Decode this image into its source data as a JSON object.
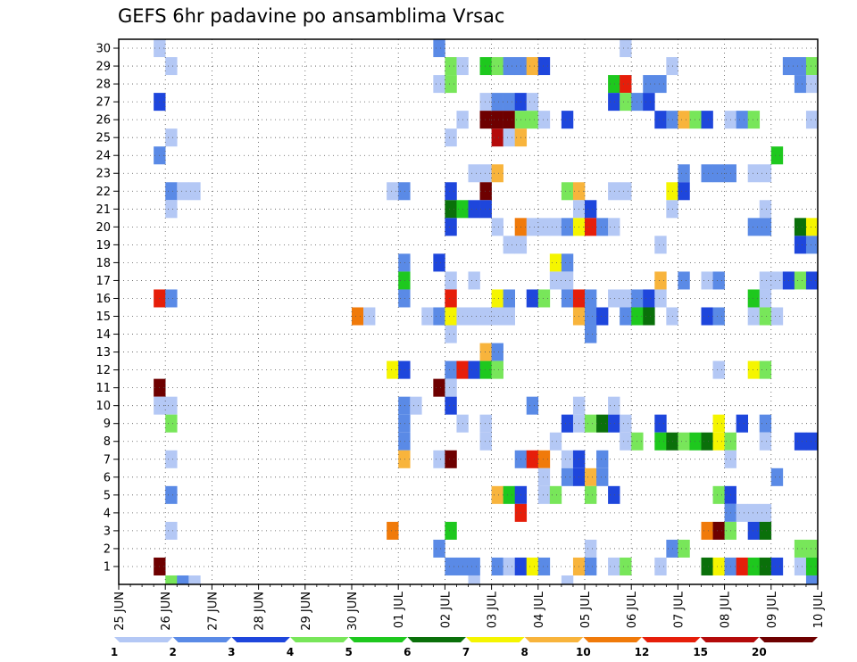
{
  "chart_data": {
    "type": "heatmap",
    "title": "GEFS 6hr padavine po ansamblima Vrsac",
    "xlabel": "",
    "ylabel": "",
    "n_timesteps": 60,
    "x_ticks": [
      {
        "t": 0,
        "label": "25 JUN"
      },
      {
        "t": 4,
        "label": "26 JUN"
      },
      {
        "t": 8,
        "label": "27 JUN"
      },
      {
        "t": 12,
        "label": "28 JUN"
      },
      {
        "t": 16,
        "label": "29 JUN"
      },
      {
        "t": 20,
        "label": "30 JUN"
      },
      {
        "t": 24,
        "label": "01 JUL"
      },
      {
        "t": 28,
        "label": "02 JUL"
      },
      {
        "t": 32,
        "label": "03 JUL"
      },
      {
        "t": 36,
        "label": "04 JUL"
      },
      {
        "t": 40,
        "label": "05 JUL"
      },
      {
        "t": 44,
        "label": "06 JUL"
      },
      {
        "t": 48,
        "label": "07 JUL"
      },
      {
        "t": 52,
        "label": "08 JUL"
      },
      {
        "t": 56,
        "label": "09 JUL"
      },
      {
        "t": 60,
        "label": "10 JUL"
      }
    ],
    "y_ticks": [
      1,
      2,
      3,
      4,
      5,
      6,
      7,
      8,
      9,
      10,
      11,
      12,
      13,
      14,
      15,
      16,
      17,
      18,
      19,
      20,
      21,
      22,
      23,
      24,
      25,
      26,
      27,
      28,
      29,
      30
    ],
    "ylim": [
      0,
      30
    ],
    "grid": true,
    "legend": {
      "placement": "bottom",
      "labels": [
        "1",
        "2",
        "3",
        "4",
        "5",
        "6",
        "7",
        "8",
        "10",
        "12",
        "15",
        "20"
      ],
      "colors": [
        "#b4c8f5",
        "#5a8ae6",
        "#1e46dc",
        "#78e65a",
        "#1ec81e",
        "#0a700a",
        "#f5f500",
        "#f8b43c",
        "#f07a0a",
        "#e61e0a",
        "#b40a0a",
        "#6e0000"
      ]
    },
    "cells": [
      [
        3,
        30,
        0
      ],
      [
        27,
        30,
        1
      ],
      [
        43,
        30,
        0
      ],
      [
        4,
        29,
        0
      ],
      [
        28,
        29,
        3
      ],
      [
        29,
        29,
        0
      ],
      [
        31,
        29,
        4
      ],
      [
        32,
        29,
        3
      ],
      [
        33,
        29,
        1
      ],
      [
        34,
        29,
        1
      ],
      [
        35,
        29,
        7
      ],
      [
        36,
        29,
        2
      ],
      [
        47,
        29,
        0
      ],
      [
        57,
        29,
        1
      ],
      [
        58,
        29,
        1
      ],
      [
        59,
        29,
        3
      ],
      [
        27,
        28,
        0
      ],
      [
        28,
        28,
        3
      ],
      [
        42,
        28,
        4
      ],
      [
        43,
        28,
        9
      ],
      [
        45,
        28,
        1
      ],
      [
        46,
        28,
        1
      ],
      [
        58,
        28,
        1
      ],
      [
        59,
        28,
        0
      ],
      [
        3,
        27,
        2
      ],
      [
        31,
        27,
        0
      ],
      [
        32,
        27,
        1
      ],
      [
        33,
        27,
        1
      ],
      [
        34,
        27,
        2
      ],
      [
        35,
        27,
        0
      ],
      [
        42,
        27,
        2
      ],
      [
        43,
        27,
        3
      ],
      [
        44,
        27,
        1
      ],
      [
        45,
        27,
        2
      ],
      [
        29,
        26,
        0
      ],
      [
        31,
        26,
        11
      ],
      [
        32,
        26,
        11
      ],
      [
        33,
        26,
        11
      ],
      [
        34,
        26,
        3
      ],
      [
        35,
        26,
        3
      ],
      [
        36,
        26,
        0
      ],
      [
        38,
        26,
        2
      ],
      [
        46,
        26,
        2
      ],
      [
        47,
        26,
        1
      ],
      [
        48,
        26,
        7
      ],
      [
        49,
        26,
        3
      ],
      [
        50,
        26,
        2
      ],
      [
        52,
        26,
        0
      ],
      [
        53,
        26,
        1
      ],
      [
        54,
        26,
        3
      ],
      [
        59,
        26,
        0
      ],
      [
        4,
        25,
        0
      ],
      [
        28,
        25,
        0
      ],
      [
        32,
        25,
        10
      ],
      [
        33,
        25,
        0
      ],
      [
        34,
        25,
        7
      ],
      [
        3,
        24,
        1
      ],
      [
        56,
        24,
        4
      ],
      [
        30,
        23,
        0
      ],
      [
        31,
        23,
        0
      ],
      [
        32,
        23,
        7
      ],
      [
        48,
        23,
        1
      ],
      [
        50,
        23,
        1
      ],
      [
        51,
        23,
        1
      ],
      [
        52,
        23,
        1
      ],
      [
        54,
        23,
        0
      ],
      [
        55,
        23,
        0
      ],
      [
        4,
        22,
        1
      ],
      [
        5,
        22,
        0
      ],
      [
        6,
        22,
        0
      ],
      [
        23,
        22,
        0
      ],
      [
        24,
        22,
        1
      ],
      [
        28,
        22,
        2
      ],
      [
        31,
        22,
        11
      ],
      [
        38,
        22,
        3
      ],
      [
        39,
        22,
        7
      ],
      [
        42,
        22,
        0
      ],
      [
        43,
        22,
        0
      ],
      [
        47,
        22,
        6
      ],
      [
        48,
        22,
        2
      ],
      [
        4,
        21,
        0
      ],
      [
        28,
        21,
        5
      ],
      [
        29,
        21,
        4
      ],
      [
        30,
        21,
        2
      ],
      [
        31,
        21,
        2
      ],
      [
        39,
        21,
        0
      ],
      [
        40,
        21,
        2
      ],
      [
        47,
        21,
        0
      ],
      [
        55,
        21,
        0
      ],
      [
        28,
        20,
        2
      ],
      [
        32,
        20,
        0
      ],
      [
        34,
        20,
        8
      ],
      [
        35,
        20,
        0
      ],
      [
        36,
        20,
        0
      ],
      [
        37,
        20,
        0
      ],
      [
        38,
        20,
        1
      ],
      [
        39,
        20,
        6
      ],
      [
        40,
        20,
        9
      ],
      [
        41,
        20,
        1
      ],
      [
        42,
        20,
        0
      ],
      [
        54,
        20,
        1
      ],
      [
        55,
        20,
        1
      ],
      [
        58,
        20,
        5
      ],
      [
        59,
        20,
        6
      ],
      [
        33,
        19,
        0
      ],
      [
        34,
        19,
        0
      ],
      [
        46,
        19,
        0
      ],
      [
        58,
        19,
        2
      ],
      [
        59,
        19,
        1
      ],
      [
        24,
        18,
        1
      ],
      [
        27,
        18,
        2
      ],
      [
        37,
        18,
        6
      ],
      [
        38,
        18,
        1
      ],
      [
        24,
        17,
        4
      ],
      [
        28,
        17,
        0
      ],
      [
        30,
        17,
        0
      ],
      [
        37,
        17,
        0
      ],
      [
        38,
        17,
        0
      ],
      [
        46,
        17,
        7
      ],
      [
        48,
        17,
        1
      ],
      [
        50,
        17,
        0
      ],
      [
        51,
        17,
        1
      ],
      [
        55,
        17,
        0
      ],
      [
        56,
        17,
        0
      ],
      [
        57,
        17,
        2
      ],
      [
        58,
        17,
        3
      ],
      [
        59,
        17,
        2
      ],
      [
        3,
        16,
        9
      ],
      [
        4,
        16,
        1
      ],
      [
        24,
        16,
        1
      ],
      [
        28,
        16,
        9
      ],
      [
        32,
        16,
        6
      ],
      [
        33,
        16,
        1
      ],
      [
        35,
        16,
        2
      ],
      [
        36,
        16,
        3
      ],
      [
        38,
        16,
        1
      ],
      [
        39,
        16,
        9
      ],
      [
        40,
        16,
        1
      ],
      [
        42,
        16,
        0
      ],
      [
        43,
        16,
        0
      ],
      [
        44,
        16,
        1
      ],
      [
        45,
        16,
        2
      ],
      [
        46,
        16,
        0
      ],
      [
        54,
        16,
        4
      ],
      [
        55,
        16,
        0
      ],
      [
        20,
        15,
        8
      ],
      [
        21,
        15,
        0
      ],
      [
        26,
        15,
        0
      ],
      [
        27,
        15,
        1
      ],
      [
        28,
        15,
        6
      ],
      [
        29,
        15,
        0
      ],
      [
        30,
        15,
        0
      ],
      [
        31,
        15,
        0
      ],
      [
        32,
        15,
        0
      ],
      [
        33,
        15,
        0
      ],
      [
        39,
        15,
        7
      ],
      [
        40,
        15,
        1
      ],
      [
        41,
        15,
        2
      ],
      [
        43,
        15,
        1
      ],
      [
        44,
        15,
        4
      ],
      [
        45,
        15,
        5
      ],
      [
        47,
        15,
        0
      ],
      [
        50,
        15,
        2
      ],
      [
        51,
        15,
        1
      ],
      [
        54,
        15,
        0
      ],
      [
        55,
        15,
        3
      ],
      [
        56,
        15,
        0
      ],
      [
        28,
        14,
        0
      ],
      [
        40,
        14,
        1
      ],
      [
        31,
        13,
        7
      ],
      [
        32,
        13,
        1
      ],
      [
        23,
        12,
        6
      ],
      [
        24,
        12,
        2
      ],
      [
        28,
        12,
        1
      ],
      [
        29,
        12,
        9
      ],
      [
        30,
        12,
        2
      ],
      [
        31,
        12,
        4
      ],
      [
        32,
        12,
        3
      ],
      [
        51,
        12,
        0
      ],
      [
        54,
        12,
        6
      ],
      [
        55,
        12,
        3
      ],
      [
        3,
        11,
        11
      ],
      [
        27,
        11,
        11
      ],
      [
        28,
        11,
        0
      ],
      [
        3,
        10,
        0
      ],
      [
        4,
        10,
        0
      ],
      [
        24,
        10,
        1
      ],
      [
        25,
        10,
        0
      ],
      [
        28,
        10,
        2
      ],
      [
        35,
        10,
        1
      ],
      [
        39,
        10,
        0
      ],
      [
        42,
        10,
        0
      ],
      [
        4,
        9,
        3
      ],
      [
        24,
        9,
        1
      ],
      [
        29,
        9,
        0
      ],
      [
        31,
        9,
        0
      ],
      [
        38,
        9,
        2
      ],
      [
        39,
        9,
        0
      ],
      [
        40,
        9,
        3
      ],
      [
        41,
        9,
        5
      ],
      [
        42,
        9,
        2
      ],
      [
        43,
        9,
        0
      ],
      [
        46,
        9,
        2
      ],
      [
        51,
        9,
        6
      ],
      [
        53,
        9,
        2
      ],
      [
        55,
        9,
        1
      ],
      [
        24,
        8,
        1
      ],
      [
        31,
        8,
        0
      ],
      [
        37,
        8,
        0
      ],
      [
        43,
        8,
        0
      ],
      [
        44,
        8,
        3
      ],
      [
        46,
        8,
        4
      ],
      [
        47,
        8,
        5
      ],
      [
        48,
        8,
        3
      ],
      [
        49,
        8,
        4
      ],
      [
        50,
        8,
        5
      ],
      [
        51,
        8,
        6
      ],
      [
        52,
        8,
        3
      ],
      [
        55,
        8,
        0
      ],
      [
        58,
        8,
        2
      ],
      [
        59,
        8,
        2
      ],
      [
        4,
        7,
        0
      ],
      [
        24,
        7,
        7
      ],
      [
        27,
        7,
        0
      ],
      [
        28,
        7,
        11
      ],
      [
        34,
        7,
        1
      ],
      [
        35,
        7,
        9
      ],
      [
        36,
        7,
        8
      ],
      [
        38,
        7,
        0
      ],
      [
        39,
        7,
        2
      ],
      [
        41,
        7,
        1
      ],
      [
        52,
        7,
        0
      ],
      [
        36,
        6,
        0
      ],
      [
        38,
        6,
        1
      ],
      [
        39,
        6,
        2
      ],
      [
        40,
        6,
        7
      ],
      [
        41,
        6,
        1
      ],
      [
        56,
        6,
        1
      ],
      [
        4,
        5,
        1
      ],
      [
        32,
        5,
        7
      ],
      [
        33,
        5,
        4
      ],
      [
        34,
        5,
        2
      ],
      [
        36,
        5,
        0
      ],
      [
        37,
        5,
        3
      ],
      [
        40,
        5,
        3
      ],
      [
        42,
        5,
        2
      ],
      [
        51,
        5,
        3
      ],
      [
        52,
        5,
        2
      ],
      [
        34,
        4,
        9
      ],
      [
        52,
        4,
        1
      ],
      [
        53,
        4,
        0
      ],
      [
        54,
        4,
        0
      ],
      [
        55,
        4,
        0
      ],
      [
        4,
        3,
        0
      ],
      [
        23,
        3,
        8
      ],
      [
        28,
        3,
        4
      ],
      [
        50,
        3,
        8
      ],
      [
        51,
        3,
        11
      ],
      [
        52,
        3,
        3
      ],
      [
        54,
        3,
        2
      ],
      [
        55,
        3,
        5
      ],
      [
        27,
        2,
        1
      ],
      [
        40,
        2,
        0
      ],
      [
        47,
        2,
        1
      ],
      [
        48,
        2,
        3
      ],
      [
        58,
        2,
        3
      ],
      [
        59,
        2,
        3
      ],
      [
        3,
        1,
        11
      ],
      [
        28,
        1,
        1
      ],
      [
        29,
        1,
        1
      ],
      [
        30,
        1,
        1
      ],
      [
        32,
        1,
        1
      ],
      [
        33,
        1,
        0
      ],
      [
        34,
        1,
        2
      ],
      [
        35,
        1,
        6
      ],
      [
        36,
        1,
        1
      ],
      [
        39,
        1,
        7
      ],
      [
        40,
        1,
        1
      ],
      [
        42,
        1,
        0
      ],
      [
        43,
        1,
        3
      ],
      [
        46,
        1,
        0
      ],
      [
        50,
        1,
        5
      ],
      [
        51,
        1,
        6
      ],
      [
        52,
        1,
        1
      ],
      [
        53,
        1,
        9
      ],
      [
        54,
        1,
        4
      ],
      [
        55,
        1,
        5
      ],
      [
        56,
        1,
        2
      ],
      [
        58,
        1,
        0
      ],
      [
        59,
        1,
        4
      ],
      [
        4,
        0,
        3
      ],
      [
        5,
        0,
        1
      ],
      [
        6,
        0,
        0
      ],
      [
        30,
        0,
        0
      ],
      [
        38,
        0,
        0
      ],
      [
        59,
        0,
        1
      ]
    ]
  }
}
